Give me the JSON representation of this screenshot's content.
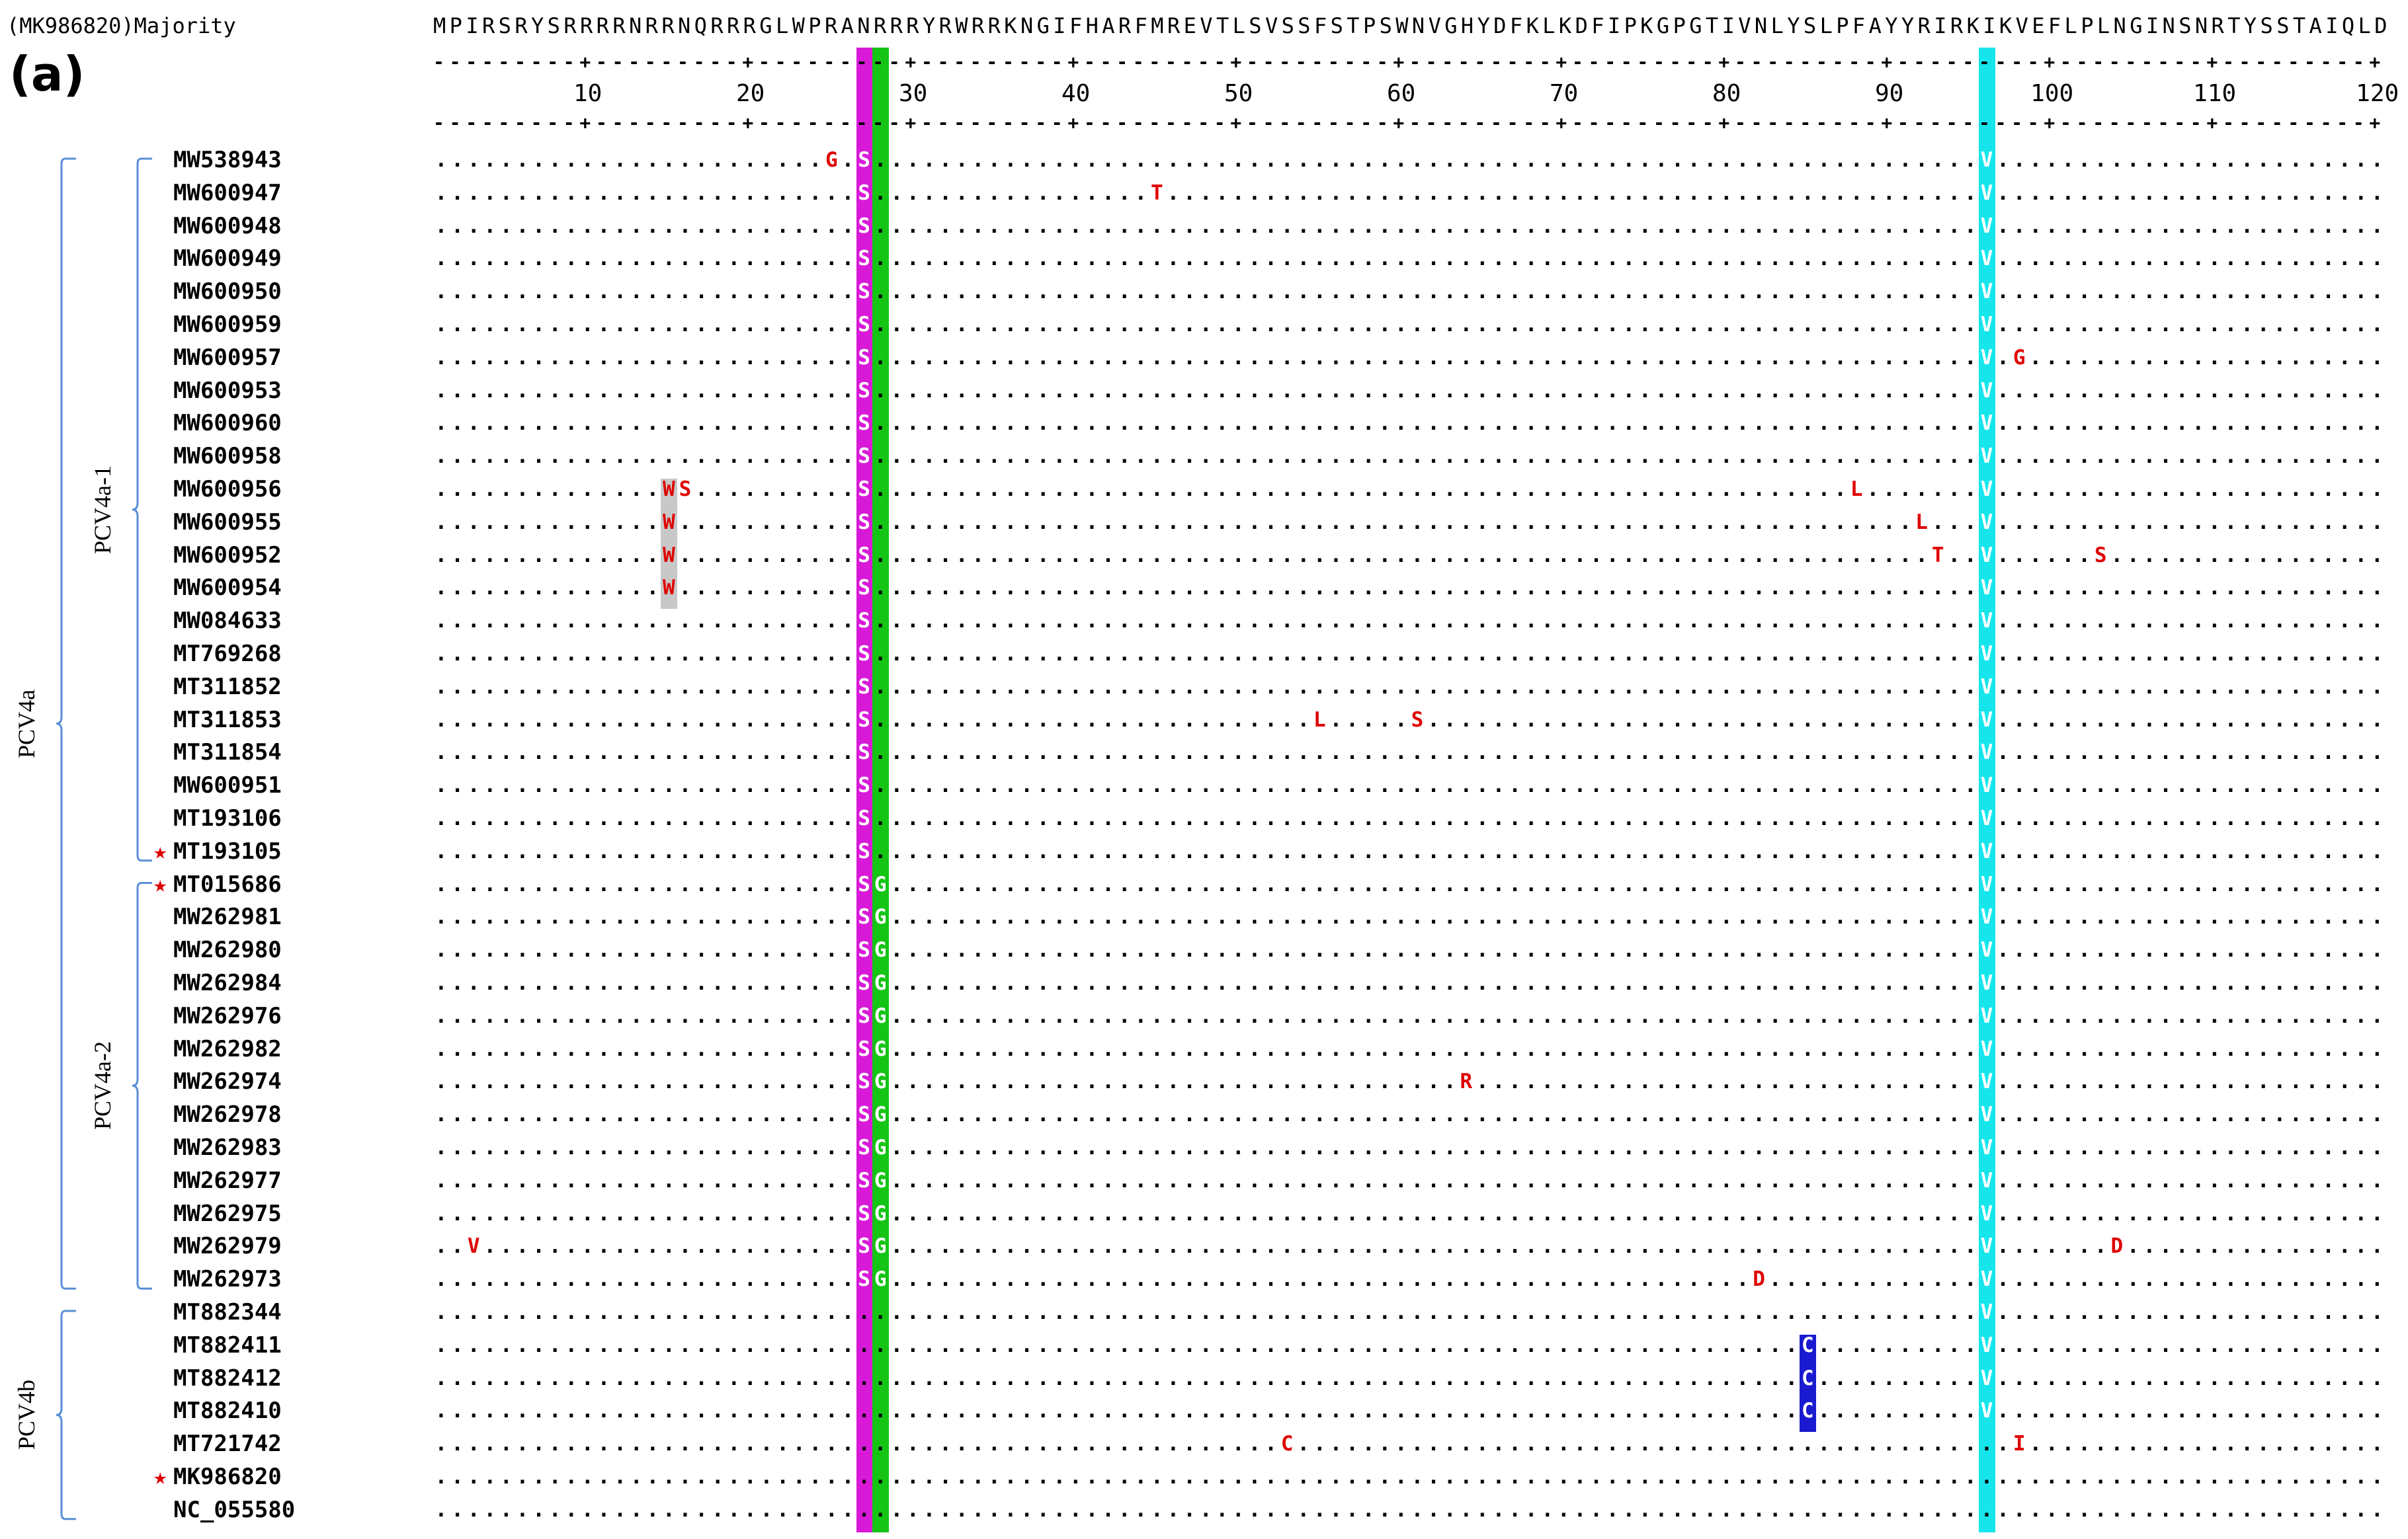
{
  "panel_label": "(a)",
  "majority_header": "(MK986820)Majority",
  "majority_sequence": "MPIRSRYSRRRRNRRNQRRRGLWPRANRRRYRWRRKNGIFHARFMREVTLSVSSFSTPSWNVGHYDFKLKDFIPKGPGTIVNLYSLPFAYYRIRKIKVEFLPLNGINSNRTYSSTAIQLD",
  "sequence_length": 120,
  "ruler_ticks": [
    10,
    20,
    30,
    40,
    50,
    60,
    70,
    80,
    90,
    100,
    110,
    120
  ],
  "highlight_columns": [
    {
      "position": 27,
      "color": "#d81ad8"
    },
    {
      "position": 28,
      "color": "#16c416"
    },
    {
      "position": 96,
      "color": "#16e6ec"
    }
  ],
  "groups": [
    {
      "label": "PCV4a",
      "rows": [
        0,
        34
      ]
    },
    {
      "label": "PCV4a-1",
      "rows": [
        0,
        21
      ]
    },
    {
      "label": "PCV4a-2",
      "rows": [
        22,
        34
      ]
    },
    {
      "label": "PCV4b",
      "rows": [
        35,
        41
      ]
    }
  ],
  "sequences": [
    {
      "id": "MW538943",
      "mutations": [
        {
          "pos": 25,
          "aa": "G"
        },
        {
          "pos": 27,
          "aa": "S"
        },
        {
          "pos": 96,
          "aa": "V"
        }
      ]
    },
    {
      "id": "MW600947",
      "mutations": [
        {
          "pos": 27,
          "aa": "S"
        },
        {
          "pos": 45,
          "aa": "T"
        },
        {
          "pos": 96,
          "aa": "V"
        }
      ]
    },
    {
      "id": "MW600948",
      "mutations": [
        {
          "pos": 27,
          "aa": "S"
        },
        {
          "pos": 96,
          "aa": "V"
        }
      ]
    },
    {
      "id": "MW600949",
      "mutations": [
        {
          "pos": 27,
          "aa": "S"
        },
        {
          "pos": 96,
          "aa": "V"
        }
      ]
    },
    {
      "id": "MW600950",
      "mutations": [
        {
          "pos": 27,
          "aa": "S"
        },
        {
          "pos": 96,
          "aa": "V"
        }
      ]
    },
    {
      "id": "MW600959",
      "mutations": [
        {
          "pos": 27,
          "aa": "S"
        },
        {
          "pos": 96,
          "aa": "V"
        }
      ]
    },
    {
      "id": "MW600957",
      "mutations": [
        {
          "pos": 27,
          "aa": "S"
        },
        {
          "pos": 96,
          "aa": "V"
        },
        {
          "pos": 98,
          "aa": "G"
        }
      ]
    },
    {
      "id": "MW600953",
      "mutations": [
        {
          "pos": 27,
          "aa": "S"
        },
        {
          "pos": 96,
          "aa": "V"
        }
      ]
    },
    {
      "id": "MW600960",
      "mutations": [
        {
          "pos": 27,
          "aa": "S"
        },
        {
          "pos": 96,
          "aa": "V"
        }
      ]
    },
    {
      "id": "MW600958",
      "mutations": [
        {
          "pos": 27,
          "aa": "S"
        },
        {
          "pos": 96,
          "aa": "V"
        }
      ]
    },
    {
      "id": "MW600956",
      "mutations": [
        {
          "pos": 15,
          "aa": "W"
        },
        {
          "pos": 16,
          "aa": "S"
        },
        {
          "pos": 27,
          "aa": "S"
        },
        {
          "pos": 88,
          "aa": "L"
        },
        {
          "pos": 96,
          "aa": "V"
        }
      ]
    },
    {
      "id": "MW600955",
      "mutations": [
        {
          "pos": 15,
          "aa": "W"
        },
        {
          "pos": 27,
          "aa": "S"
        },
        {
          "pos": 92,
          "aa": "L"
        },
        {
          "pos": 96,
          "aa": "V"
        }
      ]
    },
    {
      "id": "MW600952",
      "mutations": [
        {
          "pos": 15,
          "aa": "W"
        },
        {
          "pos": 27,
          "aa": "S"
        },
        {
          "pos": 93,
          "aa": "T"
        },
        {
          "pos": 96,
          "aa": "V"
        },
        {
          "pos": 103,
          "aa": "S"
        }
      ]
    },
    {
      "id": "MW600954",
      "mutations": [
        {
          "pos": 15,
          "aa": "W"
        },
        {
          "pos": 27,
          "aa": "S"
        },
        {
          "pos": 96,
          "aa": "V"
        }
      ]
    },
    {
      "id": "MW084633",
      "mutations": [
        {
          "pos": 27,
          "aa": "S"
        },
        {
          "pos": 96,
          "aa": "V"
        }
      ]
    },
    {
      "id": "MT769268",
      "mutations": [
        {
          "pos": 27,
          "aa": "S"
        },
        {
          "pos": 96,
          "aa": "V"
        }
      ]
    },
    {
      "id": "MT311852",
      "mutations": [
        {
          "pos": 27,
          "aa": "S"
        },
        {
          "pos": 96,
          "aa": "V"
        }
      ]
    },
    {
      "id": "MT311853",
      "mutations": [
        {
          "pos": 27,
          "aa": "S"
        },
        {
          "pos": 55,
          "aa": "L"
        },
        {
          "pos": 61,
          "aa": "S"
        },
        {
          "pos": 96,
          "aa": "V"
        }
      ]
    },
    {
      "id": "MT311854",
      "mutations": [
        {
          "pos": 27,
          "aa": "S"
        },
        {
          "pos": 96,
          "aa": "V"
        }
      ]
    },
    {
      "id": "MW600951",
      "mutations": [
        {
          "pos": 27,
          "aa": "S"
        },
        {
          "pos": 96,
          "aa": "V"
        }
      ]
    },
    {
      "id": "MT193106",
      "mutations": [
        {
          "pos": 27,
          "aa": "S"
        },
        {
          "pos": 96,
          "aa": "V"
        }
      ]
    },
    {
      "id": "MT193105",
      "star": true,
      "mutations": [
        {
          "pos": 27,
          "aa": "S"
        },
        {
          "pos": 96,
          "aa": "V"
        }
      ]
    },
    {
      "id": "MT015686",
      "star": true,
      "mutations": [
        {
          "pos": 27,
          "aa": "S"
        },
        {
          "pos": 28,
          "aa": "G"
        },
        {
          "pos": 96,
          "aa": "V"
        }
      ]
    },
    {
      "id": "MW262981",
      "mutations": [
        {
          "pos": 27,
          "aa": "S"
        },
        {
          "pos": 28,
          "aa": "G"
        },
        {
          "pos": 96,
          "aa": "V"
        }
      ]
    },
    {
      "id": "MW262980",
      "mutations": [
        {
          "pos": 27,
          "aa": "S"
        },
        {
          "pos": 28,
          "aa": "G"
        },
        {
          "pos": 96,
          "aa": "V"
        }
      ]
    },
    {
      "id": "MW262984",
      "mutations": [
        {
          "pos": 27,
          "aa": "S"
        },
        {
          "pos": 28,
          "aa": "G"
        },
        {
          "pos": 96,
          "aa": "V"
        }
      ]
    },
    {
      "id": "MW262976",
      "mutations": [
        {
          "pos": 27,
          "aa": "S"
        },
        {
          "pos": 28,
          "aa": "G"
        },
        {
          "pos": 96,
          "aa": "V"
        }
      ]
    },
    {
      "id": "MW262982",
      "mutations": [
        {
          "pos": 27,
          "aa": "S"
        },
        {
          "pos": 28,
          "aa": "G"
        },
        {
          "pos": 96,
          "aa": "V"
        }
      ]
    },
    {
      "id": "MW262974",
      "mutations": [
        {
          "pos": 27,
          "aa": "S"
        },
        {
          "pos": 28,
          "aa": "G"
        },
        {
          "pos": 64,
          "aa": "R"
        },
        {
          "pos": 96,
          "aa": "V"
        }
      ]
    },
    {
      "id": "MW262978",
      "mutations": [
        {
          "pos": 27,
          "aa": "S"
        },
        {
          "pos": 28,
          "aa": "G"
        },
        {
          "pos": 96,
          "aa": "V"
        }
      ]
    },
    {
      "id": "MW262983",
      "mutations": [
        {
          "pos": 27,
          "aa": "S"
        },
        {
          "pos": 28,
          "aa": "G"
        },
        {
          "pos": 96,
          "aa": "V"
        }
      ]
    },
    {
      "id": "MW262977",
      "mutations": [
        {
          "pos": 27,
          "aa": "S"
        },
        {
          "pos": 28,
          "aa": "G"
        },
        {
          "pos": 96,
          "aa": "V"
        }
      ]
    },
    {
      "id": "MW262975",
      "mutations": [
        {
          "pos": 27,
          "aa": "S"
        },
        {
          "pos": 28,
          "aa": "G"
        },
        {
          "pos": 96,
          "aa": "V"
        }
      ]
    },
    {
      "id": "MW262979",
      "mutations": [
        {
          "pos": 3,
          "aa": "V"
        },
        {
          "pos": 27,
          "aa": "S"
        },
        {
          "pos": 28,
          "aa": "G"
        },
        {
          "pos": 96,
          "aa": "V"
        },
        {
          "pos": 104,
          "aa": "D"
        }
      ]
    },
    {
      "id": "MW262973",
      "mutations": [
        {
          "pos": 27,
          "aa": "S"
        },
        {
          "pos": 28,
          "aa": "G"
        },
        {
          "pos": 82,
          "aa": "D"
        },
        {
          "pos": 96,
          "aa": "V"
        }
      ]
    },
    {
      "id": "MT882344",
      "mutations": [
        {
          "pos": 96,
          "aa": "V"
        }
      ]
    },
    {
      "id": "MT882411",
      "mutations": [
        {
          "pos": 85,
          "aa": "C"
        },
        {
          "pos": 96,
          "aa": "V"
        }
      ]
    },
    {
      "id": "MT882412",
      "mutations": [
        {
          "pos": 85,
          "aa": "C"
        },
        {
          "pos": 96,
          "aa": "V"
        }
      ]
    },
    {
      "id": "MT882410",
      "mutations": [
        {
          "pos": 85,
          "aa": "C"
        },
        {
          "pos": 96,
          "aa": "V"
        }
      ]
    },
    {
      "id": "MT721742",
      "mutations": [
        {
          "pos": 53,
          "aa": "C"
        },
        {
          "pos": 98,
          "aa": "I"
        }
      ]
    },
    {
      "id": "MK986820",
      "star": true,
      "mutations": []
    },
    {
      "id": "NC_055580",
      "mutations": []
    }
  ],
  "special_cell_styles": [
    {
      "rows": [
        10,
        13
      ],
      "pos": 15,
      "bg": "#c8c8c8"
    },
    {
      "rows": [
        36,
        38
      ],
      "pos": 85,
      "bg": "#1a1ad0"
    }
  ],
  "colors": {
    "mutation_text": "#e00000",
    "highlight_text": "#ffffff",
    "bracket": "#5a8fd6",
    "star": "#e00000"
  }
}
